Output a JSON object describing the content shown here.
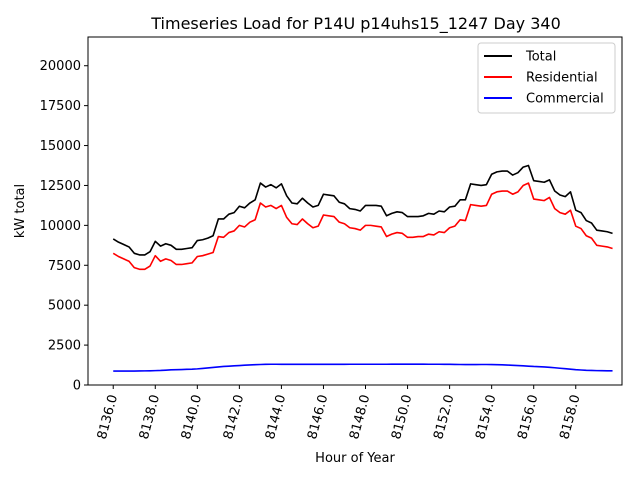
{
  "chart_data": {
    "type": "line",
    "title": "Timeseries Load for P14U p14uhs15_1247  Day 340",
    "xlabel": "Hour of Year",
    "ylabel": "kW total",
    "xlim": [
      8134.8,
      8160.2
    ],
    "ylim": [
      0,
      21800
    ],
    "xticks": [
      8136,
      8138,
      8140,
      8142,
      8144,
      8146,
      8148,
      8150,
      8152,
      8154,
      8156,
      8158
    ],
    "xtick_labels": [
      "8136.0",
      "8138.0",
      "8140.0",
      "8142.0",
      "8144.0",
      "8146.0",
      "8148.0",
      "8150.0",
      "8152.0",
      "8154.0",
      "8156.0",
      "8158.0"
    ],
    "yticks": [
      0,
      2500,
      5000,
      7500,
      10000,
      12500,
      15000,
      17500,
      20000
    ],
    "ytick_labels": [
      "0",
      "2500",
      "5000",
      "7500",
      "10000",
      "12500",
      "15000",
      "17500",
      "20000"
    ],
    "legend_position": "top-right",
    "x": [
      8136.0,
      8136.25,
      8136.5,
      8136.75,
      8137.0,
      8137.25,
      8137.5,
      8137.75,
      8138.0,
      8138.25,
      8138.5,
      8138.75,
      8139.0,
      8139.25,
      8139.5,
      8139.75,
      8140.0,
      8140.25,
      8140.5,
      8140.75,
      8141.0,
      8141.25,
      8141.5,
      8141.75,
      8142.0,
      8142.25,
      8142.5,
      8142.75,
      8143.0,
      8143.25,
      8143.5,
      8143.75,
      8144.0,
      8144.25,
      8144.5,
      8144.75,
      8145.0,
      8145.25,
      8145.5,
      8145.75,
      8146.0,
      8146.25,
      8146.5,
      8146.75,
      8147.0,
      8147.25,
      8147.5,
      8147.75,
      8148.0,
      8148.25,
      8148.5,
      8148.75,
      8149.0,
      8149.25,
      8149.5,
      8149.75,
      8150.0,
      8150.25,
      8150.5,
      8150.75,
      8151.0,
      8151.25,
      8151.5,
      8151.75,
      8152.0,
      8152.25,
      8152.5,
      8152.75,
      8153.0,
      8153.25,
      8153.5,
      8153.75,
      8154.0,
      8154.25,
      8154.5,
      8154.75,
      8155.0,
      8155.25,
      8155.5,
      8155.75,
      8156.0,
      8156.25,
      8156.5,
      8156.75,
      8157.0,
      8157.25,
      8157.5,
      8157.75,
      8158.0,
      8158.25,
      8158.5,
      8158.75,
      8159.0,
      8159.25,
      8159.5,
      8159.75
    ],
    "series": [
      {
        "name": "Total",
        "color": "#000000",
        "values": [
          9150,
          8950,
          8800,
          8650,
          8250,
          8150,
          8150,
          8350,
          9000,
          8700,
          8850,
          8750,
          8500,
          8500,
          8550,
          8600,
          9050,
          9100,
          9200,
          9350,
          10400,
          10400,
          10700,
          10800,
          11200,
          11100,
          11400,
          11600,
          12650,
          12400,
          12550,
          12350,
          12600,
          11850,
          11400,
          11350,
          11700,
          11400,
          11150,
          11250,
          11950,
          11900,
          11850,
          11450,
          11350,
          11050,
          11000,
          10900,
          11250,
          11250,
          11250,
          11200,
          10600,
          10750,
          10850,
          10800,
          10550,
          10550,
          10550,
          10600,
          10750,
          10700,
          10900,
          10850,
          11150,
          11200,
          11600,
          11600,
          12600,
          12550,
          12500,
          12550,
          13200,
          13350,
          13400,
          13400,
          13150,
          13300,
          13650,
          13750,
          12800,
          12750,
          12700,
          12850,
          12150,
          11900,
          11800,
          12100,
          10950,
          10800,
          10300,
          10150,
          9700,
          9650,
          9600,
          9500
        ]
      },
      {
        "name": "Residential",
        "color": "#ff0000",
        "values": [
          8250,
          8050,
          7900,
          7750,
          7350,
          7250,
          7250,
          7450,
          8100,
          7750,
          7900,
          7800,
          7550,
          7550,
          7600,
          7650,
          8050,
          8100,
          8200,
          8300,
          9300,
          9250,
          9550,
          9650,
          10000,
          9900,
          10200,
          10350,
          11400,
          11150,
          11250,
          11050,
          11250,
          10500,
          10100,
          10050,
          10400,
          10100,
          9850,
          9950,
          10650,
          10600,
          10550,
          10200,
          10100,
          9850,
          9800,
          9700,
          10000,
          10000,
          9950,
          9900,
          9300,
          9450,
          9550,
          9500,
          9250,
          9250,
          9300,
          9300,
          9450,
          9400,
          9600,
          9550,
          9850,
          9950,
          10350,
          10300,
          11300,
          11250,
          11200,
          11250,
          11950,
          12100,
          12150,
          12150,
          11950,
          12100,
          12500,
          12650,
          11650,
          11600,
          11550,
          11750,
          11050,
          10800,
          10700,
          10950,
          9950,
          9800,
          9350,
          9200,
          8750,
          8700,
          8650,
          8550
        ]
      },
      {
        "name": "Commercial",
        "color": "#0000ff",
        "values": [
          870,
          870,
          870,
          870,
          875,
          880,
          885,
          890,
          900,
          910,
          930,
          950,
          960,
          970,
          980,
          990,
          1010,
          1040,
          1070,
          1100,
          1130,
          1160,
          1180,
          1200,
          1220,
          1240,
          1255,
          1270,
          1285,
          1295,
          1300,
          1300,
          1295,
          1295,
          1295,
          1295,
          1295,
          1295,
          1295,
          1295,
          1295,
          1295,
          1295,
          1295,
          1295,
          1300,
          1300,
          1300,
          1300,
          1300,
          1300,
          1300,
          1300,
          1305,
          1305,
          1305,
          1305,
          1305,
          1305,
          1305,
          1300,
          1300,
          1300,
          1295,
          1295,
          1290,
          1285,
          1280,
          1280,
          1280,
          1285,
          1285,
          1280,
          1275,
          1265,
          1250,
          1235,
          1220,
          1200,
          1180,
          1160,
          1150,
          1130,
          1110,
          1080,
          1050,
          1020,
          990,
          960,
          940,
          920,
          910,
          900,
          895,
          890,
          890
        ]
      }
    ]
  }
}
